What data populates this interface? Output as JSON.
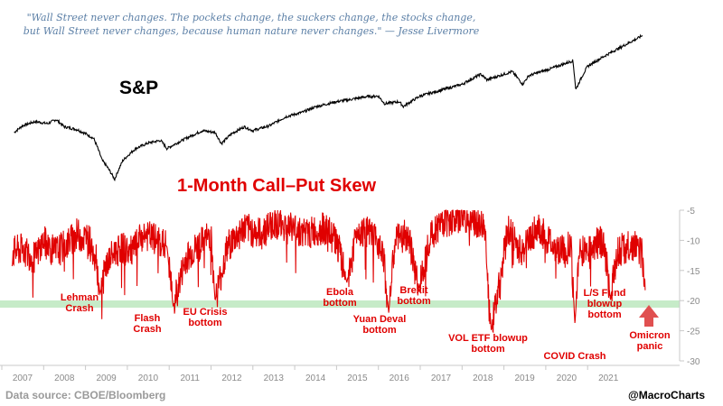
{
  "quote": {
    "line1": "\"Wall Street never changes. The pockets change, the suckers change, the stocks change,",
    "line2": "but Wall Street never changes, because human nature never changes.\" — Jesse Livermore"
  },
  "sp_label": "S&P",
  "skew_title": "1-Month Call–Put Skew",
  "source": "Data source: CBOE/Bloomberg",
  "credit": "@MacroCharts",
  "colors": {
    "sp_line": "#000000",
    "skew_line": "#e00000",
    "threshold_band": "#c6ebc8",
    "annotation": "#e00000"
  },
  "chart_data": [
    {
      "type": "line",
      "title": "S&P",
      "x_range": [
        2006.75,
        2021.85
      ],
      "note_scale": "log-like, relative level",
      "series": [
        {
          "name": "S&P",
          "x": [
            2006.8,
            2007.0,
            2007.3,
            2007.6,
            2007.8,
            2008.0,
            2008.3,
            2008.5,
            2008.7,
            2008.9,
            2009.0,
            2009.2,
            2009.4,
            2009.7,
            2010.0,
            2010.3,
            2010.45,
            2010.6,
            2010.9,
            2011.3,
            2011.6,
            2011.75,
            2012.0,
            2012.3,
            2012.5,
            2012.9,
            2013.3,
            2013.7,
            2014.0,
            2014.5,
            2014.8,
            2015.2,
            2015.5,
            2015.65,
            2016.0,
            2016.1,
            2016.5,
            2017.0,
            2017.5,
            2017.95,
            2018.1,
            2018.7,
            2018.95,
            2019.1,
            2019.6,
            2020.0,
            2020.15,
            2020.22,
            2020.5,
            2020.9,
            2021.3,
            2021.7,
            2021.8
          ],
          "values": [
            1300,
            1420,
            1500,
            1460,
            1540,
            1400,
            1350,
            1280,
            1200,
            900,
            840,
            700,
            900,
            1050,
            1130,
            1170,
            1050,
            1100,
            1200,
            1330,
            1300,
            1120,
            1280,
            1400,
            1330,
            1420,
            1600,
            1700,
            1820,
            1950,
            2000,
            2080,
            2100,
            1900,
            1950,
            1830,
            2100,
            2270,
            2450,
            2800,
            2600,
            2900,
            2450,
            2750,
            3000,
            3250,
            3350,
            2280,
            3100,
            3550,
            4000,
            4500,
            4650
          ]
        }
      ]
    },
    {
      "type": "line",
      "title": "1-Month Call–Put Skew",
      "ylim": [
        -30,
        -5
      ],
      "yticks": [
        -5,
        -10,
        -15,
        -20,
        -25,
        -30
      ],
      "ytick_labels": [
        "-5",
        "-10",
        "-15",
        "-20",
        "-25",
        "-30"
      ],
      "xticks": [
        "2007",
        "2008",
        "2009",
        "2010",
        "2011",
        "2012",
        "2013",
        "2014",
        "2015",
        "2016",
        "2017",
        "2018",
        "2019",
        "2020",
        "2021"
      ],
      "threshold_band": -20,
      "series": [
        {
          "name": "1-Month Call–Put Skew",
          "x": [
            2006.75,
            2007.0,
            2007.3,
            2007.5,
            2007.75,
            2008.0,
            2008.3,
            2008.6,
            2008.75,
            2008.85,
            2009.0,
            2009.3,
            2009.6,
            2009.9,
            2010.2,
            2010.45,
            2010.6,
            2010.9,
            2011.2,
            2011.5,
            2011.6,
            2011.9,
            2012.3,
            2012.7,
            2013.0,
            2013.5,
            2013.8,
            2014.2,
            2014.5,
            2014.75,
            2015.0,
            2015.3,
            2015.6,
            2015.75,
            2015.9,
            2016.2,
            2016.48,
            2016.7,
            2017.0,
            2017.5,
            2017.8,
            2018.05,
            2018.2,
            2018.6,
            2018.9,
            2019.3,
            2019.7,
            2020.0,
            2020.1,
            2020.2,
            2020.3,
            2020.6,
            2020.9,
            2021.05,
            2021.2,
            2021.45,
            2021.6,
            2021.8,
            2021.88
          ],
          "values": [
            -12,
            -11.5,
            -13,
            -10,
            -12,
            -11,
            -9,
            -10,
            -12,
            -19,
            -14,
            -11,
            -12,
            -9,
            -10,
            -11,
            -21,
            -13,
            -11,
            -9,
            -20,
            -11,
            -8,
            -9,
            -7,
            -8,
            -9,
            -8,
            -10,
            -17,
            -8,
            -9,
            -11,
            -22,
            -10,
            -9,
            -18,
            -10,
            -7,
            -6,
            -7,
            -8,
            -25,
            -8,
            -12,
            -8,
            -11,
            -12,
            -10,
            -24,
            -12,
            -11,
            -10,
            -20,
            -12,
            -11,
            -11,
            -12,
            -19.5
          ]
        }
      ]
    }
  ],
  "annotations": [
    {
      "name": "lehman",
      "lines": [
        "Lehman",
        "Crash"
      ]
    },
    {
      "name": "flash",
      "lines": [
        "Flash",
        "Crash"
      ]
    },
    {
      "name": "eu-crisis",
      "lines": [
        "EU Crisis",
        "bottom"
      ]
    },
    {
      "name": "ebola",
      "lines": [
        "Ebola",
        "bottom"
      ]
    },
    {
      "name": "yuan",
      "lines": [
        "Yuan Deval",
        "bottom"
      ]
    },
    {
      "name": "brexit",
      "lines": [
        "Brexit",
        "bottom"
      ]
    },
    {
      "name": "vol-etf",
      "lines": [
        "VOL ETF blowup",
        "bottom"
      ]
    },
    {
      "name": "covid",
      "lines": [
        "COVID Crash"
      ]
    },
    {
      "name": "ls-fund",
      "lines": [
        "L/S Fund",
        "blowup",
        "bottom"
      ]
    },
    {
      "name": "omicron",
      "lines": [
        "Omicron",
        "panic"
      ]
    }
  ]
}
